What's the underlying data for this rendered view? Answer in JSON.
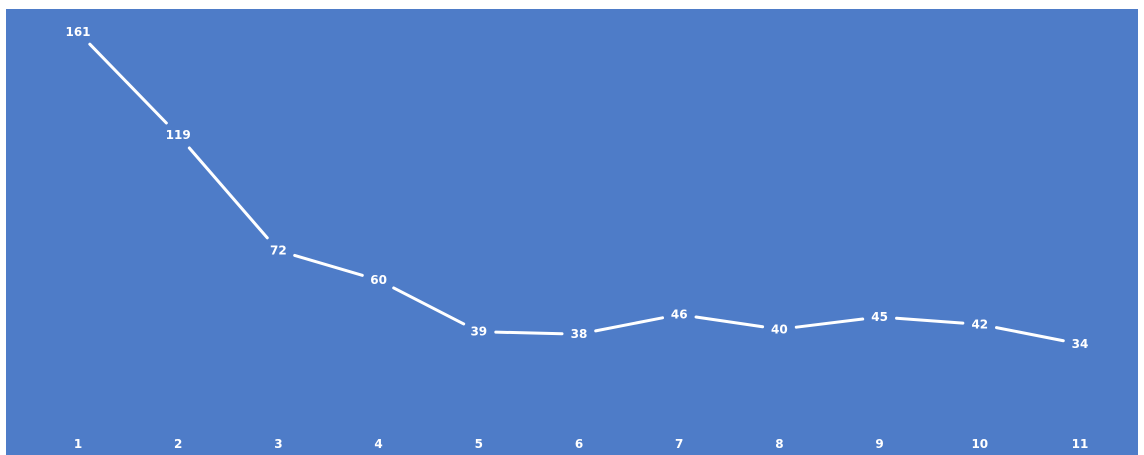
{
  "chart_data": {
    "type": "line",
    "categories": [
      "1",
      "2",
      "3",
      "4",
      "5",
      "6",
      "7",
      "8",
      "9",
      "10",
      "11"
    ],
    "values": [
      161,
      119,
      72,
      60,
      39,
      38,
      46,
      40,
      45,
      42,
      34
    ],
    "title": "",
    "xlabel": "",
    "ylabel": "",
    "ylim": [
      0,
      170
    ],
    "grid": false,
    "legend": "none",
    "drop_lines": true,
    "data_labels": true,
    "colors": {
      "background": "#4e7cc8",
      "line": "#ffffff",
      "drop_line": "#ffffff",
      "text": "#ffffff"
    }
  }
}
